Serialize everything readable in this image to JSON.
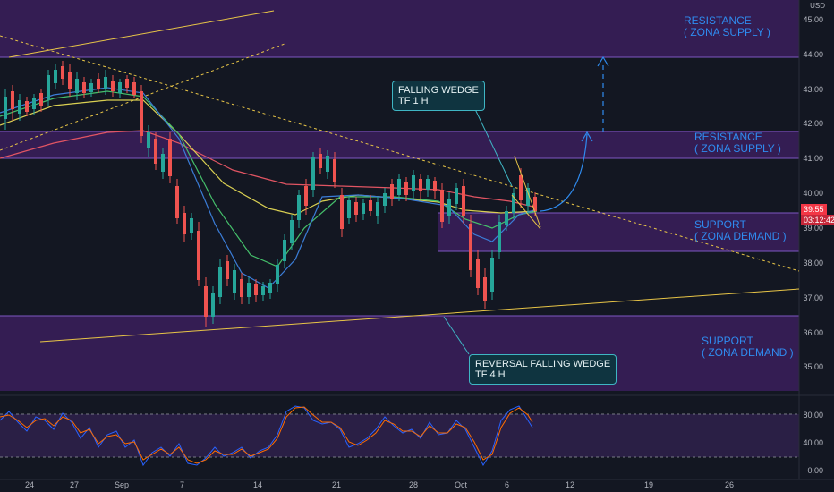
{
  "currency": "USD",
  "price_axis": {
    "main": [
      "45.00",
      "44.00",
      "43.00",
      "42.00",
      "41.00",
      "40.00",
      "39.00",
      "38.00",
      "37.00",
      "36.00",
      "35.00"
    ],
    "osc": [
      "80.00",
      "40.00",
      "0.00"
    ],
    "current_price": "39.55",
    "countdown": "03:12:42"
  },
  "time_axis": [
    "24",
    "27",
    "Sep",
    "7",
    "14",
    "21",
    "28",
    "Oct",
    "6",
    "12",
    "19",
    "26"
  ],
  "zones": {
    "resistance_top": "RESISTANCE\n( ZONA SUPPLY )",
    "resistance_mid": "RESISTANCE\n( ZONA SUPPLY )",
    "support_mid": "SUPPORT\n( ZONA DEMAND )",
    "support_bottom": "SUPPORT\n( ZONA DEMAND )"
  },
  "callouts": {
    "falling_wedge": "FALLING WEDGE\nTF 1 H",
    "reversal": "REVERSAL FALLING WEDGE\nTF 4 H"
  },
  "colors": {
    "background": "#131722",
    "zone_fill": "#3b1f5c",
    "zone_border": "#7e57c2",
    "candle_up": "#26a69a",
    "candle_down": "#ef5350",
    "trendline": "#e8c547",
    "arrow": "#2f8cf0",
    "price_tag": "#f23645"
  }
}
